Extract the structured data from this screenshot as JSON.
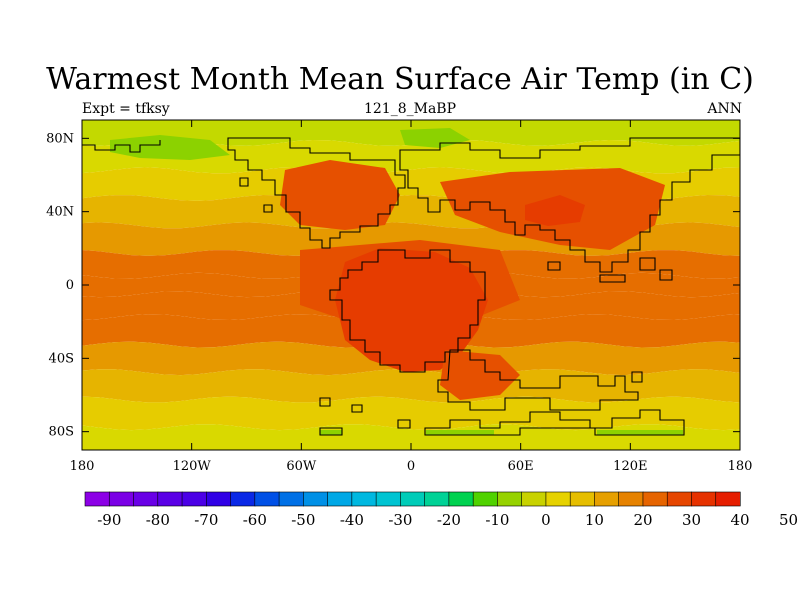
{
  "chart_data": {
    "type": "heatmap",
    "title": "Warmest Month Mean Surface Air Temp (in C)",
    "subtitle_left": "Expt = tfksy",
    "subtitle_center": "121_8_MaBP",
    "subtitle_right": "ANN",
    "x_ticks": [
      {
        "value": -180,
        "label": "180"
      },
      {
        "value": -120,
        "label": "120W"
      },
      {
        "value": -60,
        "label": "60W"
      },
      {
        "value": 0,
        "label": "0"
      },
      {
        "value": 60,
        "label": "60E"
      },
      {
        "value": 120,
        "label": "120E"
      },
      {
        "value": 180,
        "label": "180"
      }
    ],
    "y_ticks": [
      {
        "value": 80,
        "label": "80N"
      },
      {
        "value": 40,
        "label": "40N"
      },
      {
        "value": 0,
        "label": "0"
      },
      {
        "value": -40,
        "label": "40S"
      },
      {
        "value": -80,
        "label": "80S"
      }
    ],
    "xlim": [
      -180,
      180
    ],
    "ylim": [
      -90,
      90
    ],
    "latitude_band_means": [
      {
        "lat": 85,
        "value": 5
      },
      {
        "lat": 70,
        "value": 13
      },
      {
        "lat": 55,
        "value": 18
      },
      {
        "lat": 40,
        "value": 24
      },
      {
        "lat": 25,
        "value": 28
      },
      {
        "lat": 10,
        "value": 32
      },
      {
        "lat": 0,
        "value": 33
      },
      {
        "lat": -10,
        "value": 34
      },
      {
        "lat": -25,
        "value": 32
      },
      {
        "lat": -40,
        "value": 28
      },
      {
        "lat": -55,
        "value": 22
      },
      {
        "lat": -70,
        "value": 17
      },
      {
        "lat": -85,
        "value": 14
      }
    ],
    "colorbar": {
      "tick_labels": [
        "-90",
        "-80",
        "-70",
        "-60",
        "-50",
        "-40",
        "-30",
        "-20",
        "-10",
        "0",
        "10",
        "20",
        "30",
        "40",
        "50"
      ],
      "level_min": -95,
      "level_step": 5,
      "colors": [
        "#8c00e6",
        "#7b00e6",
        "#6900e6",
        "#5a00e6",
        "#4b00e6",
        "#3000e6",
        "#0a28e6",
        "#0050e6",
        "#0070e6",
        "#0090e6",
        "#00a8e6",
        "#00b8e0",
        "#00c4d2",
        "#00ccb8",
        "#00d296",
        "#00d250",
        "#50d200",
        "#96d200",
        "#c8d200",
        "#e6d200",
        "#e6be00",
        "#e6a000",
        "#e68200",
        "#e66400",
        "#e64600",
        "#e63200",
        "#e61e00"
      ]
    },
    "palette": {
      "band_00_10": "#c3d900",
      "band_10_15": "#d9d900",
      "band_15_20": "#e6cc00",
      "band_20_25": "#e6b400",
      "band_25_30": "#e69900",
      "band_30_35": "#e66e00",
      "band_35_40": "#e65000",
      "band_40_45": "#e63c00",
      "band_45_50": "#e62800",
      "land_green": "#8cd200"
    }
  }
}
